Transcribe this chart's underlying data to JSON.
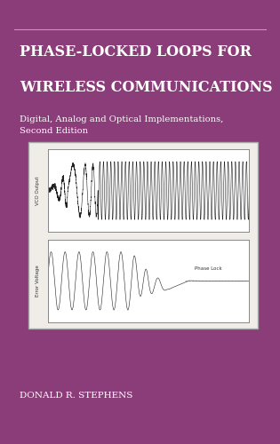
{
  "background_color": "#8B3D7A",
  "title_line1": "PHASE-LOCKED LOOPS FOR",
  "title_line2": "WIRELESS COMMUNICATIONS",
  "subtitle": "Digital, Analog and Optical Implementations,\nSecond Edition",
  "author": "DONALD R. STEPHENS",
  "title_color": "#FFFFFF",
  "subtitle_color": "#FFFFFF",
  "author_color": "#FFFFFF",
  "panel_bg": "#F0EDE8",
  "plot_bg": "#FFFFFF",
  "signal_color": "#222222",
  "ylabel_top": "VCO Output",
  "ylabel_bottom": "Error Voltage",
  "phase_lock_label": "Phase Lock",
  "fig_width": 3.15,
  "fig_height": 5.0,
  "dpi": 100
}
